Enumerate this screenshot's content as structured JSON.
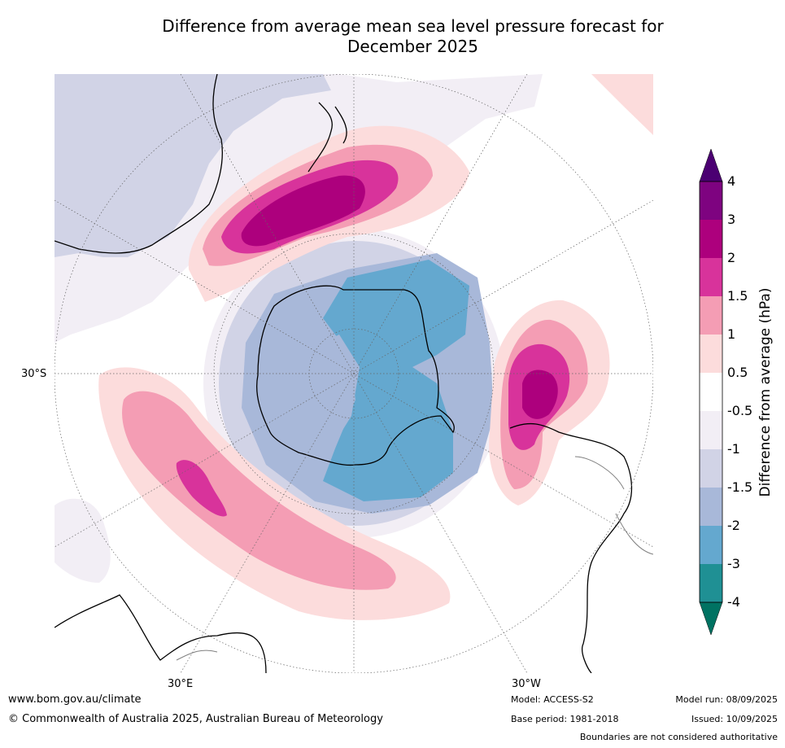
{
  "title_line1": "Difference from average mean sea level pressure forecast for",
  "title_line2": "December 2025",
  "labels": {
    "lat": "30°S",
    "lon_e": "30°E",
    "lon_w": "30°W"
  },
  "colorbar": {
    "title": "Difference from average (hPa)",
    "ticks": [
      "4",
      "3",
      "2",
      "1.5",
      "1",
      "0.5",
      "-0.5",
      "-1",
      "-1.5",
      "-2",
      "-3",
      "-4"
    ],
    "colors": {
      "gt4": "#4b0072",
      "c3_4": "#7e0380",
      "c2_3": "#ad007d",
      "c15_2": "#d8339b",
      "c1_15": "#f49db4",
      "c05_1": "#fcdcdc",
      "neutral": "#ffffff",
      "n1_05": "#f2eef5",
      "n15_1": "#d1d3e6",
      "n2_15": "#a8b8d9",
      "n3_2": "#64a8cf",
      "n4_3": "#1f9094",
      "lt4": "#007262"
    }
  },
  "footer": {
    "url": "www.bom.gov.au/climate",
    "copyright": "© Commonwealth of Australia 2025, Australian Bureau of Meteorology",
    "model": "Model: ACCESS-S2",
    "base": "Base period: 1981-2018",
    "run": "Model run: 08/09/2025",
    "issued": "Issued: 10/09/2025",
    "disclaimer": "Boundaries are not considered authoritative"
  }
}
